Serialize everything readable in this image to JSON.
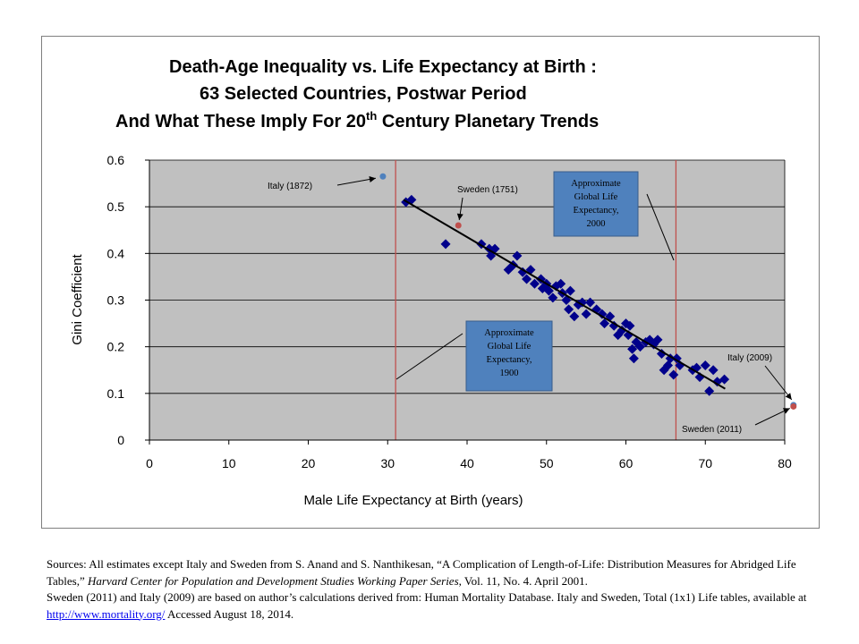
{
  "chart_data": {
    "type": "scatter",
    "title_line1": "Death-Age Inequality vs. Life Expectancy at Birth :",
    "title_line2": "63 Selected Countries, Postwar Period",
    "title_line3_prefix": "And What These Imply For  20",
    "title_line3_sup": "th",
    "title_line3_suffix": " Century Planetary Trends",
    "xlabel": "Male Life Expectancy at Birth (years)",
    "ylabel": "Gini Coefficient",
    "xlim": [
      0,
      80
    ],
    "ylim": [
      0,
      0.6
    ],
    "x_ticks": [
      "0",
      "10",
      "20",
      "30",
      "40",
      "50",
      "60",
      "70",
      "80"
    ],
    "y_ticks": [
      "0",
      "0.1",
      "0.2",
      "0.3",
      "0.4",
      "0.5",
      "0.6"
    ],
    "grid": "horizontal",
    "colors": {
      "plot_bg": "#c0c0c0",
      "diamond": "#00008b",
      "trend": "#000000",
      "ref_line": "#c0504d",
      "box_fill": "#4f81bd",
      "italy_1872": "#4f81bd",
      "sweden_point": "#c0504d"
    },
    "series": [
      {
        "values": [
          [
            32.3,
            0.51
          ],
          [
            33.0,
            0.515
          ],
          [
            37.3,
            0.42
          ],
          [
            41.8,
            0.42
          ],
          [
            42.8,
            0.41
          ],
          [
            43.0,
            0.395
          ],
          [
            43.5,
            0.41
          ],
          [
            45.2,
            0.365
          ],
          [
            45.8,
            0.375
          ],
          [
            46.3,
            0.395
          ],
          [
            47.0,
            0.36
          ],
          [
            47.5,
            0.345
          ],
          [
            48.0,
            0.365
          ],
          [
            48.5,
            0.335
          ],
          [
            49.3,
            0.345
          ],
          [
            49.5,
            0.325
          ],
          [
            50.0,
            0.335
          ],
          [
            50.3,
            0.32
          ],
          [
            50.8,
            0.305
          ],
          [
            51.2,
            0.33
          ],
          [
            51.8,
            0.335
          ],
          [
            52.0,
            0.315
          ],
          [
            52.5,
            0.3
          ],
          [
            52.8,
            0.28
          ],
          [
            53.0,
            0.32
          ],
          [
            53.5,
            0.265
          ],
          [
            54.0,
            0.29
          ],
          [
            54.5,
            0.295
          ],
          [
            55.0,
            0.27
          ],
          [
            55.5,
            0.295
          ],
          [
            56.3,
            0.28
          ],
          [
            57.0,
            0.27
          ],
          [
            57.3,
            0.25
          ],
          [
            58.0,
            0.265
          ],
          [
            58.5,
            0.245
          ],
          [
            59.0,
            0.225
          ],
          [
            59.5,
            0.235
          ],
          [
            60.0,
            0.25
          ],
          [
            60.3,
            0.225
          ],
          [
            60.5,
            0.245
          ],
          [
            60.8,
            0.195
          ],
          [
            61.0,
            0.175
          ],
          [
            61.3,
            0.21
          ],
          [
            61.8,
            0.2
          ],
          [
            62.5,
            0.21
          ],
          [
            63.0,
            0.215
          ],
          [
            63.5,
            0.205
          ],
          [
            64.0,
            0.215
          ],
          [
            64.5,
            0.185
          ],
          [
            64.8,
            0.15
          ],
          [
            65.3,
            0.16
          ],
          [
            65.6,
            0.175
          ],
          [
            66.0,
            0.14
          ],
          [
            66.4,
            0.175
          ],
          [
            66.8,
            0.16
          ],
          [
            68.4,
            0.15
          ],
          [
            68.9,
            0.155
          ],
          [
            69.3,
            0.135
          ],
          [
            70.0,
            0.16
          ],
          [
            70.5,
            0.105
          ],
          [
            71.0,
            0.15
          ],
          [
            71.5,
            0.125
          ],
          [
            72.4,
            0.13
          ]
        ]
      }
    ],
    "trendline": {
      "x": [
        32.0,
        72.5
      ],
      "y": [
        0.515,
        0.11
      ]
    },
    "highlighted_points": [
      {
        "label": "Italy (1872)",
        "x": 29.4,
        "y": 0.565,
        "color": "#4f81bd"
      },
      {
        "label": "Sweden (1751)",
        "x": 38.9,
        "y": 0.46,
        "color": "#c0504d"
      },
      {
        "label": "Italy (2009)",
        "x": 81.1,
        "y": 0.075,
        "color": "#4f81bd"
      },
      {
        "label": "Sweden (2011)",
        "x": 81.1,
        "y": 0.072,
        "color": "#c0504d"
      }
    ],
    "reference_lines": [
      {
        "x": 31.0,
        "label_lines": [
          "Approximate",
          "Global Life",
          "Expectancy,",
          "1900"
        ]
      },
      {
        "x": 66.3,
        "label_lines": [
          "Approximate",
          "Global Life",
          "Expectancy,",
          "2000"
        ]
      }
    ]
  },
  "sources": {
    "line1_start": "Sources:  All estimates except Italy and Sweden from S. Anand and S. Nanthikesan, “A Complication of Length-of-Life: Distribution Measures  for Abridged Life Tables,” ",
    "line1_italic": "Harvard Center for Population and Development Studies Working Paper Series",
    "line1_end": ", Vol. 11, No. 4.  April 2001.",
    "line2_start": "Sweden (2011) and Italy (2009) are based on author’s calculations derived from: Human Mortality Database. Italy and Sweden, Total (1x1) Life tables, available at  ",
    "link": "http://www.mortality.org/",
    "line2_end": " Accessed August 18, 2014."
  }
}
